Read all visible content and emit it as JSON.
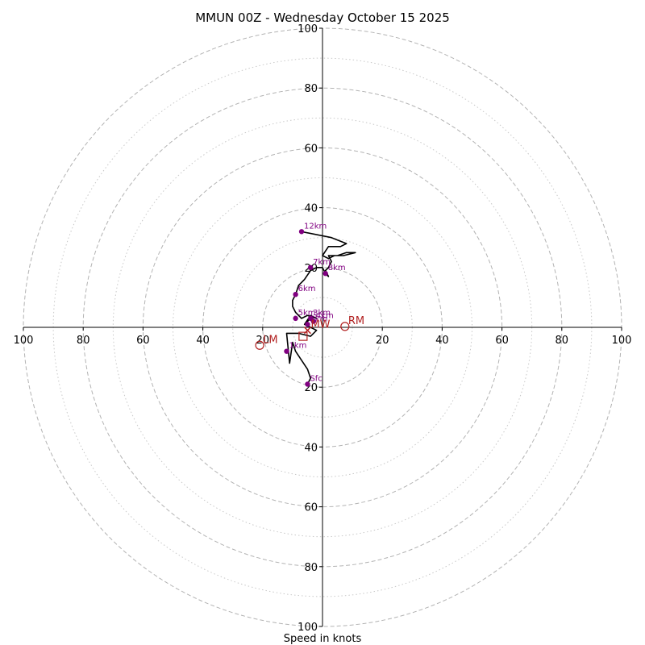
{
  "chart_data": {
    "type": "scatter",
    "subtype": "hodograph",
    "title": "MMUN 00Z - Wednesday October 15 2025",
    "xlabel": "Speed in knots",
    "ylabel": "",
    "xlim": [
      -100,
      100
    ],
    "ylim": [
      -100,
      100
    ],
    "ring_major": [
      20,
      40,
      60,
      80,
      100
    ],
    "ring_minor": [
      10,
      30,
      50,
      70,
      90
    ],
    "x_tick_labels": [
      "100",
      "80",
      "60",
      "40",
      "20",
      "20",
      "40",
      "60",
      "80",
      "100"
    ],
    "x_tick_values": [
      -100,
      -80,
      -60,
      -40,
      -20,
      20,
      40,
      60,
      80,
      100
    ],
    "y_tick_labels": [
      "100",
      "80",
      "60",
      "40",
      "20",
      "20",
      "40",
      "60",
      "80",
      "100"
    ],
    "y_tick_values": [
      100,
      80,
      60,
      40,
      20,
      -20,
      -40,
      -60,
      -80,
      -100
    ],
    "trace": {
      "u": [
        -5,
        -4,
        -5,
        -7,
        -9,
        -10,
        -11,
        -12,
        -8,
        -4,
        -3,
        -2,
        -4,
        -6,
        -5,
        -4,
        -6,
        -4,
        -2,
        -5,
        -7,
        -9,
        -10,
        -10,
        -9,
        -8,
        -6,
        -4,
        -2,
        0,
        1,
        2,
        1,
        2,
        3,
        2,
        5,
        8,
        11,
        7,
        4,
        2,
        0,
        2,
        4,
        6,
        8,
        3,
        -7
      ],
      "v": [
        -19,
        -17,
        -14,
        -11,
        -8,
        -5,
        -12,
        -2,
        -2,
        -3,
        -2,
        -1,
        0,
        1,
        2,
        3,
        1,
        4,
        3,
        4,
        3,
        5,
        7,
        9,
        11,
        14,
        16,
        19,
        20,
        20,
        18,
        17,
        19,
        20,
        22,
        24,
        24,
        25,
        25,
        24,
        24,
        23,
        24,
        27,
        27,
        27,
        28,
        30,
        32
      ]
    },
    "height_points": [
      {
        "label": "Sfc",
        "u": -5,
        "v": -19
      },
      {
        "label": "1km",
        "u": -12,
        "v": -8
      },
      {
        "label": "2km",
        "u": -5,
        "v": 1
      },
      {
        "label": "3km",
        "u": -4,
        "v": 3
      },
      {
        "label": "4km",
        "u": -3,
        "v": 2
      },
      {
        "label": "5km",
        "u": -9,
        "v": 3
      },
      {
        "label": "6km",
        "u": -9,
        "v": 11
      },
      {
        "label": "7km",
        "u": -4,
        "v": 20
      },
      {
        "label": "8km",
        "u": 1,
        "v": 18
      },
      {
        "label": "12km",
        "u": -7,
        "v": 32
      }
    ],
    "motions": [
      {
        "label": "RM",
        "u": 7.5,
        "v": 0.3,
        "marker": "circle"
      },
      {
        "label": "LM",
        "u": -21,
        "v": -6,
        "marker": "circle"
      },
      {
        "label": "",
        "u": -6.5,
        "v": -3,
        "marker": "square"
      },
      {
        "label": "MW",
        "u": -5,
        "v": -1,
        "marker": "cross"
      }
    ],
    "colors": {
      "trace": "#000000",
      "height_points": "#800080",
      "motions": "#b22222",
      "ring": "#b3b3b3"
    }
  }
}
